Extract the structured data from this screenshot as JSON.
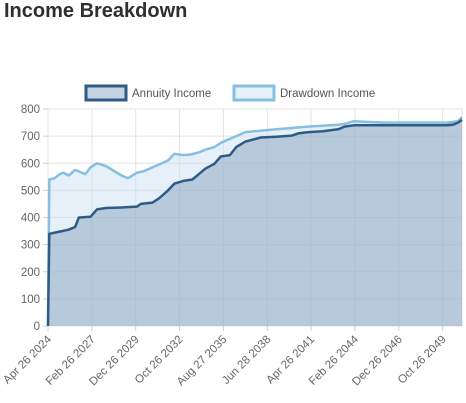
{
  "page": {
    "title": "Income Breakdown"
  },
  "chart_data": {
    "type": "area",
    "title": "",
    "xlabel": "",
    "ylabel": "",
    "ylim": [
      0,
      800
    ],
    "yticks": [
      0,
      100,
      200,
      300,
      400,
      500,
      600,
      700,
      800
    ],
    "x_range": [
      "2024-04-26",
      "2051-01-26"
    ],
    "xticks": [
      "Apr 26 2024",
      "Feb 26 2027",
      "Dec 26 2029",
      "Oct 26 2032",
      "Aug 27 2035",
      "Jun 28 2038",
      "Apr 26 2041",
      "Feb 26 2044",
      "Dec 26 2046",
      "Oct 26 2049"
    ],
    "grid": true,
    "legend": "top",
    "series": [
      {
        "name": "Annuity Income",
        "color": "#2e5b85",
        "fill": "rgba(120,150,180,0.42)",
        "x": [
          "2024-04-26",
          "2024-05-26",
          "2025-01-26",
          "2025-08-26",
          "2026-01-26",
          "2026-04-26",
          "2027-01-26",
          "2027-06-26",
          "2028-01-26",
          "2029-01-26",
          "2030-01-26",
          "2030-04-26",
          "2031-01-26",
          "2031-06-26",
          "2032-01-26",
          "2032-06-26",
          "2033-01-26",
          "2033-08-26",
          "2034-01-26",
          "2034-06-26",
          "2035-01-26",
          "2035-06-26",
          "2036-01-26",
          "2036-06-26",
          "2037-01-26",
          "2038-01-26",
          "2039-01-26",
          "2040-01-26",
          "2040-06-26",
          "2041-01-26",
          "2042-01-26",
          "2043-01-26",
          "2043-06-26",
          "2044-01-26",
          "2045-01-26",
          "2046-01-26",
          "2047-01-26",
          "2048-01-26",
          "2049-01-26",
          "2050-01-26",
          "2050-06-26",
          "2050-10-26",
          "2051-01-26"
        ],
        "y": [
          0,
          340,
          348,
          355,
          365,
          400,
          403,
          430,
          435,
          437,
          440,
          450,
          455,
          470,
          500,
          525,
          535,
          540,
          560,
          580,
          598,
          625,
          630,
          660,
          680,
          695,
          698,
          702,
          710,
          714,
          718,
          725,
          735,
          740,
          740,
          740,
          740,
          740,
          740,
          740,
          742,
          750,
          760
        ]
      },
      {
        "name": "Drawdown Income",
        "color": "#86bfdf",
        "fill": "rgba(200,222,240,0.45)",
        "x": [
          "2024-04-26",
          "2024-05-26",
          "2024-09-26",
          "2025-01-26",
          "2025-04-26",
          "2025-08-26",
          "2026-01-26",
          "2026-04-26",
          "2026-09-26",
          "2027-01-26",
          "2027-06-26",
          "2028-01-26",
          "2028-06-26",
          "2029-01-26",
          "2029-06-26",
          "2030-01-26",
          "2030-06-26",
          "2031-01-26",
          "2031-06-26",
          "2032-01-26",
          "2032-06-26",
          "2033-01-26",
          "2033-06-26",
          "2034-01-26",
          "2034-06-26",
          "2035-01-26",
          "2035-06-26",
          "2036-01-26",
          "2036-06-26",
          "2037-01-26",
          "2038-01-26",
          "2039-01-26",
          "2040-01-26",
          "2041-01-26",
          "2042-01-26",
          "2043-01-26",
          "2043-06-26",
          "2044-01-26",
          "2045-01-26",
          "2046-01-26",
          "2047-01-26",
          "2048-01-26",
          "2049-01-26",
          "2050-01-26",
          "2050-10-26",
          "2051-01-26"
        ],
        "y": [
          0,
          540,
          545,
          560,
          565,
          555,
          575,
          570,
          560,
          585,
          600,
          590,
          575,
          555,
          545,
          565,
          570,
          585,
          595,
          610,
          635,
          630,
          632,
          640,
          650,
          660,
          675,
          690,
          700,
          715,
          720,
          725,
          730,
          735,
          738,
          742,
          745,
          755,
          752,
          750,
          750,
          750,
          750,
          750,
          755,
          770
        ]
      }
    ]
  }
}
